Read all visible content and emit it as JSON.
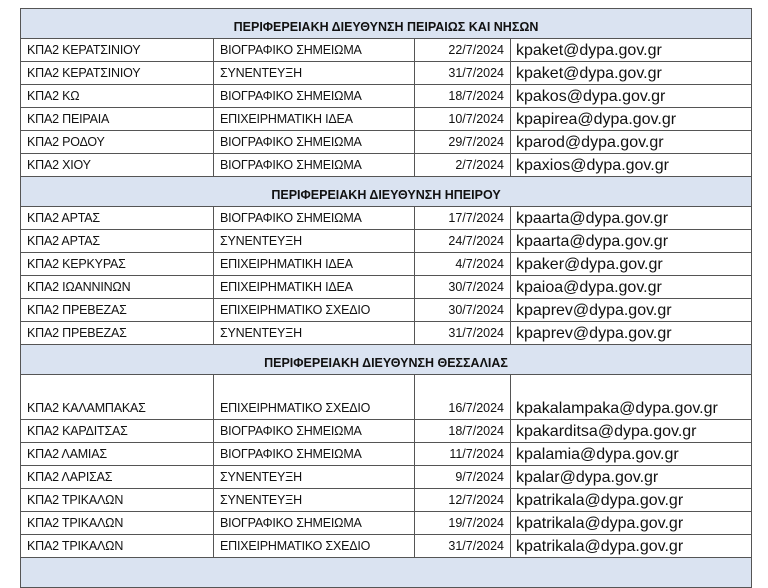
{
  "sections": [
    {
      "title": "ΠΕΡΙΦΕΡΕΙΑΚΗ ΔΙΕΥΘΥΝΣΗ ΠΕΙΡΑΙΩΣ ΚΑΙ ΝΗΣΩΝ",
      "rows": [
        [
          "ΚΠΑ2 ΚΕΡΑΤΣΙΝΙΟΥ",
          "ΒΙΟΓΡΑΦΙΚΟ ΣΗΜΕΙΩΜΑ",
          "22/7/2024",
          "kpaket@dypa.gov.gr"
        ],
        [
          "ΚΠΑ2 ΚΕΡΑΤΣΙΝΙΟΥ",
          "ΣΥΝΕΝΤΕΥΞΗ",
          "31/7/2024",
          "kpaket@dypa.gov.gr"
        ],
        [
          "ΚΠΑ2 ΚΩ",
          "ΒΙΟΓΡΑΦΙΚΟ ΣΗΜΕΙΩΜΑ",
          "18/7/2024",
          "kpakos@dypa.gov.gr"
        ],
        [
          "ΚΠΑ2 ΠΕΙΡΑΙΑ",
          "ΕΠΙΧΕΙΡΗΜΑΤΙΚΗ ΙΔΕΑ",
          "10/7/2024",
          "kpapirea@dypa.gov.gr"
        ],
        [
          "ΚΠΑ2 ΡΟΔΟΥ",
          "ΒΙΟΓΡΑΦΙΚΟ ΣΗΜΕΙΩΜΑ",
          "29/7/2024",
          "kparod@dypa.gov.gr"
        ],
        [
          "ΚΠΑ2 ΧΙΟΥ",
          "ΒΙΟΓΡΑΦΙΚΟ ΣΗΜΕΙΩΜΑ",
          "2/7/2024",
          "kpaxios@dypa.gov.gr"
        ]
      ]
    },
    {
      "title": "ΠΕΡΙΦΕΡΕΙΑΚΗ ΔΙΕΥΘΥΝΣΗ ΗΠΕΙΡΟΥ",
      "rows": [
        [
          "ΚΠΑ2 ΑΡΤΑΣ",
          "ΒΙΟΓΡΑΦΙΚΟ ΣΗΜΕΙΩΜΑ",
          "17/7/2024",
          "kpaarta@dypa.gov.gr"
        ],
        [
          "ΚΠΑ2 ΑΡΤΑΣ",
          "ΣΥΝΕΝΤΕΥΞΗ",
          "24/7/2024",
          "kpaarta@dypa.gov.gr"
        ],
        [
          "ΚΠΑ2 ΚΕΡΚΥΡΑΣ",
          "ΕΠΙΧΕΙΡΗΜΑΤΙΚΗ ΙΔΕΑ",
          "4/7/2024",
          "kpaker@dypa.gov.gr"
        ],
        [
          "ΚΠΑ2 ΙΩΑΝΝΙΝΩΝ",
          "ΕΠΙΧΕΙΡΗΜΑΤΙΚΗ ΙΔΕΑ",
          "30/7/2024",
          "kpaioa@dypa.gov.gr"
        ],
        [
          "ΚΠΑ2 ΠΡΕΒΕΖΑΣ",
          "ΕΠΙΧΕΙΡΗΜΑΤΙΚΟ ΣΧΕΔΙΟ",
          "30/7/2024",
          "kpaprev@dypa.gov.gr"
        ],
        [
          "ΚΠΑ2 ΠΡΕΒΕΖΑΣ",
          "ΣΥΝΕΝΤΕΥΞΗ",
          "31/7/2024",
          "kpaprev@dypa.gov.gr"
        ]
      ]
    },
    {
      "title": "ΠΕΡΙΦΕΡΕΙΑΚΗ ΔΙΕΥΘΥΝΣΗ ΘΕΣΣΑΛΙΑΣ",
      "rows": [
        [
          "ΚΠΑ2 ΚΑΛΑΜΠΑΚΑΣ",
          " ΕΠΙΧΕΙΡΗΜΑΤΙΚΟ ΣΧΕΔΙΟ",
          "16/7/2024",
          "kpakalampaka@dypa.gov.gr"
        ],
        [
          "ΚΠΑ2 ΚΑΡΔΙΤΣΑΣ",
          "ΒΙΟΓΡΑΦΙΚΟ ΣΗΜΕΙΩΜΑ",
          "18/7/2024",
          "kpakarditsa@dypa.gov.gr"
        ],
        [
          "ΚΠΑ2 ΛΑΜΙΑΣ",
          "ΒΙΟΓΡΑΦΙΚΟ ΣΗΜΕΙΩΜΑ",
          "11/7/2024",
          "kpalamia@dypa.gov.gr"
        ],
        [
          "ΚΠΑ2 ΛΑΡΙΣΑΣ",
          "ΣΥΝΕΝΤΕΥΞΗ",
          "9/7/2024",
          "kpalar@dypa.gov.gr"
        ],
        [
          "ΚΠΑ2 ΤΡΙΚΑΛΩΝ",
          "ΣΥΝΕΝΤΕΥΞΗ",
          "12/7/2024",
          "kpatrikala@dypa.gov.gr"
        ],
        [
          "ΚΠΑ2 ΤΡΙΚΑΛΩΝ",
          "ΒΙΟΓΡΑΦΙΚΟ ΣΗΜΕΙΩΜΑ",
          "19/7/2024",
          "kpatrikala@dypa.gov.gr"
        ],
        [
          "ΚΠΑ2 ΤΡΙΚΑΛΩΝ",
          " ΕΠΙΧΕΙΡΗΜΑΤΙΚΟ ΣΧΕΔΙΟ",
          "31/7/2024",
          "kpatrikala@dypa.gov.gr"
        ]
      ]
    }
  ],
  "colors": {
    "header_bg": "#dae3f1",
    "border": "#555555"
  }
}
